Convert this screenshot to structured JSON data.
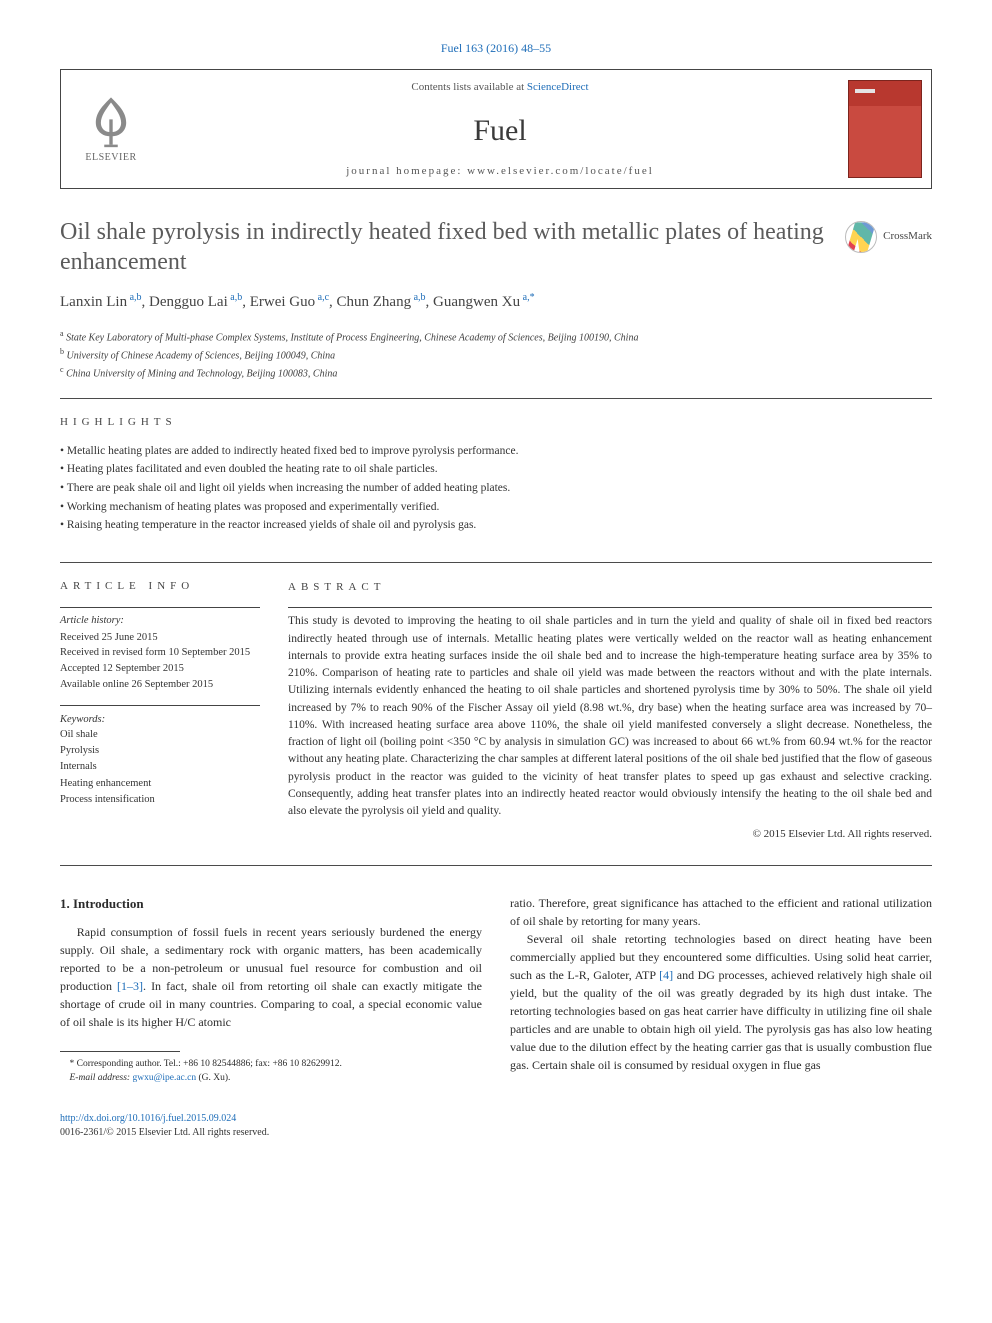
{
  "citation": "Fuel 163 (2016) 48–55",
  "header": {
    "contents_prefix": "Contents lists available at ",
    "sciencedirect": "ScienceDirect",
    "journal": "Fuel",
    "homepage_prefix": "journal homepage: ",
    "homepage": "www.elsevier.com/locate/fuel",
    "publisher": "ELSEVIER"
  },
  "crossmark_label": "CrossMark",
  "title": "Oil shale pyrolysis in indirectly heated fixed bed with metallic plates of heating enhancement",
  "authors": [
    {
      "name": "Lanxin Lin",
      "aff": "a,b"
    },
    {
      "name": "Dengguo Lai",
      "aff": "a,b"
    },
    {
      "name": "Erwei Guo",
      "aff": "a,c"
    },
    {
      "name": "Chun Zhang",
      "aff": "a,b"
    },
    {
      "name": "Guangwen Xu",
      "aff": "a,*"
    }
  ],
  "affiliations": {
    "a": "State Key Laboratory of Multi-phase Complex Systems, Institute of Process Engineering, Chinese Academy of Sciences, Beijing 100190, China",
    "b": "University of Chinese Academy of Sciences, Beijing 100049, China",
    "c": "China University of Mining and Technology, Beijing 100083, China"
  },
  "section_labels": {
    "highlights": "HIGHLIGHTS",
    "article_info": "ARTICLE INFO",
    "abstract": "ABSTRACT"
  },
  "highlights": [
    "Metallic heating plates are added to indirectly heated fixed bed to improve pyrolysis performance.",
    "Heating plates facilitated and even doubled the heating rate to oil shale particles.",
    "There are peak shale oil and light oil yields when increasing the number of added heating plates.",
    "Working mechanism of heating plates was proposed and experimentally verified.",
    "Raising heating temperature in the reactor increased yields of shale oil and pyrolysis gas."
  ],
  "article_info": {
    "history_label": "Article history:",
    "history": [
      "Received 25 June 2015",
      "Received in revised form 10 September 2015",
      "Accepted 12 September 2015",
      "Available online 26 September 2015"
    ],
    "keywords_label": "Keywords:",
    "keywords": [
      "Oil shale",
      "Pyrolysis",
      "Internals",
      "Heating enhancement",
      "Process intensification"
    ]
  },
  "abstract": "This study is devoted to improving the heating to oil shale particles and in turn the yield and quality of shale oil in fixed bed reactors indirectly heated through use of internals. Metallic heating plates were vertically welded on the reactor wall as heating enhancement internals to provide extra heating surfaces inside the oil shale bed and to increase the high-temperature heating surface area by 35% to 210%. Comparison of heating rate to particles and shale oil yield was made between the reactors without and with the plate internals. Utilizing internals evidently enhanced the heating to oil shale particles and shortened pyrolysis time by 30% to 50%. The shale oil yield increased by 7% to reach 90% of the Fischer Assay oil yield (8.98 wt.%, dry base) when the heating surface area was increased by 70–110%. With increased heating surface area above 110%, the shale oil yield manifested conversely a slight decrease. Nonetheless, the fraction of light oil (boiling point <350 °C by analysis in simulation GC) was increased to about 66 wt.% from 60.94 wt.% for the reactor without any heating plate. Characterizing the char samples at different lateral positions of the oil shale bed justified that the flow of gaseous pyrolysis product in the reactor was guided to the vicinity of heat transfer plates to speed up gas exhaust and selective cracking. Consequently, adding heat transfer plates into an indirectly heated reactor would obviously intensify the heating to the oil shale bed and also elevate the pyrolysis oil yield and quality.",
  "copyright": "© 2015 Elsevier Ltd. All rights reserved.",
  "intro": {
    "heading": "1. Introduction",
    "p1_a": "Rapid consumption of fossil fuels in recent years seriously burdened the energy supply. Oil shale, a sedimentary rock with organic matters, has been academically reported to be a non-petroleum or unusual fuel resource for combustion and oil production ",
    "p1_ref1": "[1–3]",
    "p1_b": ". In fact, shale oil from retorting oil shale can exactly mitigate the shortage of crude oil in many countries. Comparing to coal, a special economic value of oil shale is its higher H/C atomic",
    "p2": "ratio. Therefore, great significance has attached to the efficient and rational utilization of oil shale by retorting for many years.",
    "p3_a": "Several oil shale retorting technologies based on direct heating have been commercially applied but they encountered some difficulties. Using solid heat carrier, such as the L-R, Galoter, ATP ",
    "p3_ref2": "[4]",
    "p3_b": " and DG processes, achieved relatively high shale oil yield, but the quality of the oil was greatly degraded by its high dust intake. The retorting technologies based on gas heat carrier have difficulty in utilizing fine oil shale particles and are unable to obtain high oil yield. The pyrolysis gas has also low heating value due to the dilution effect by the heating carrier gas that is usually combustion flue gas. Certain shale oil is consumed by residual oxygen in flue gas"
  },
  "footnote": {
    "corr": "* Corresponding author. Tel.: +86 10 82544886; fax: +86 10 82629912.",
    "email_label": "E-mail address: ",
    "email": "gwxu@ipe.ac.cn",
    "email_suffix": " (G. Xu)."
  },
  "footer": {
    "doi": "http://dx.doi.org/10.1016/j.fuel.2015.09.024",
    "issn": "0016-2361/© 2015 Elsevier Ltd. All rights reserved."
  },
  "colors": {
    "link": "#1e6db8",
    "rule": "#4b4b4b",
    "text": "#2b2b2b",
    "title_gray": "#5b5b5b"
  }
}
